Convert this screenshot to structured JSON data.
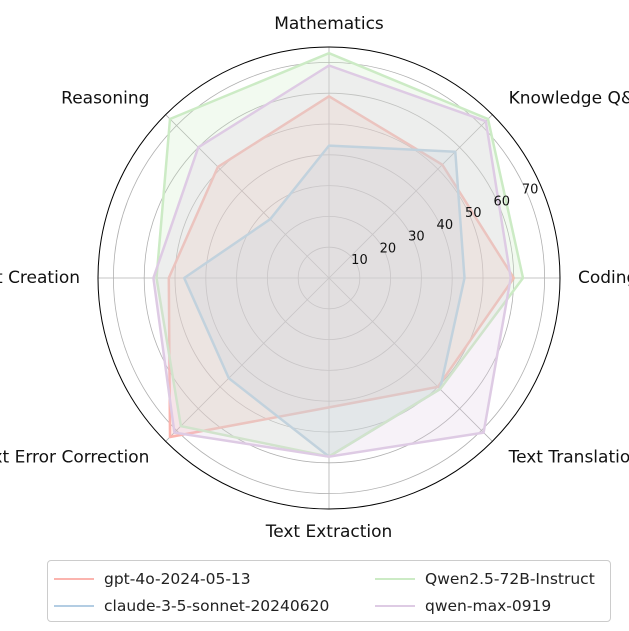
{
  "chart_data": {
    "type": "radar",
    "axes": [
      "Mathematics",
      "Knowledge Q&A",
      "Coding",
      "Text Translation",
      "Text Extraction",
      "Text Error Correction",
      "Text Creation",
      "Reasoning"
    ],
    "r_ticks": [
      "10",
      "20",
      "30",
      "40",
      "50",
      "60",
      "70"
    ],
    "rlim": [
      0,
      75
    ],
    "grid": true,
    "legend_position": "bottom",
    "series": [
      {
        "name": "gpt-4o-2024-05-13",
        "color": "#fbb4ae",
        "values": [
          59,
          52,
          60,
          50,
          42,
          73,
          52,
          51
        ]
      },
      {
        "name": "claude-3-5-sonnet-20240620",
        "color": "#b3cde3",
        "values": [
          43,
          58,
          44,
          51,
          58,
          46,
          47,
          27
        ]
      },
      {
        "name": "Qwen2.5-72B-Instruct",
        "color": "#ccebc5",
        "values": [
          73,
          73,
          63,
          51,
          58,
          68,
          56,
          73
        ]
      },
      {
        "name": "qwen-max-0919",
        "color": "#decbe4",
        "values": [
          69,
          72,
          59,
          71,
          58,
          71,
          57,
          60
        ]
      }
    ]
  }
}
